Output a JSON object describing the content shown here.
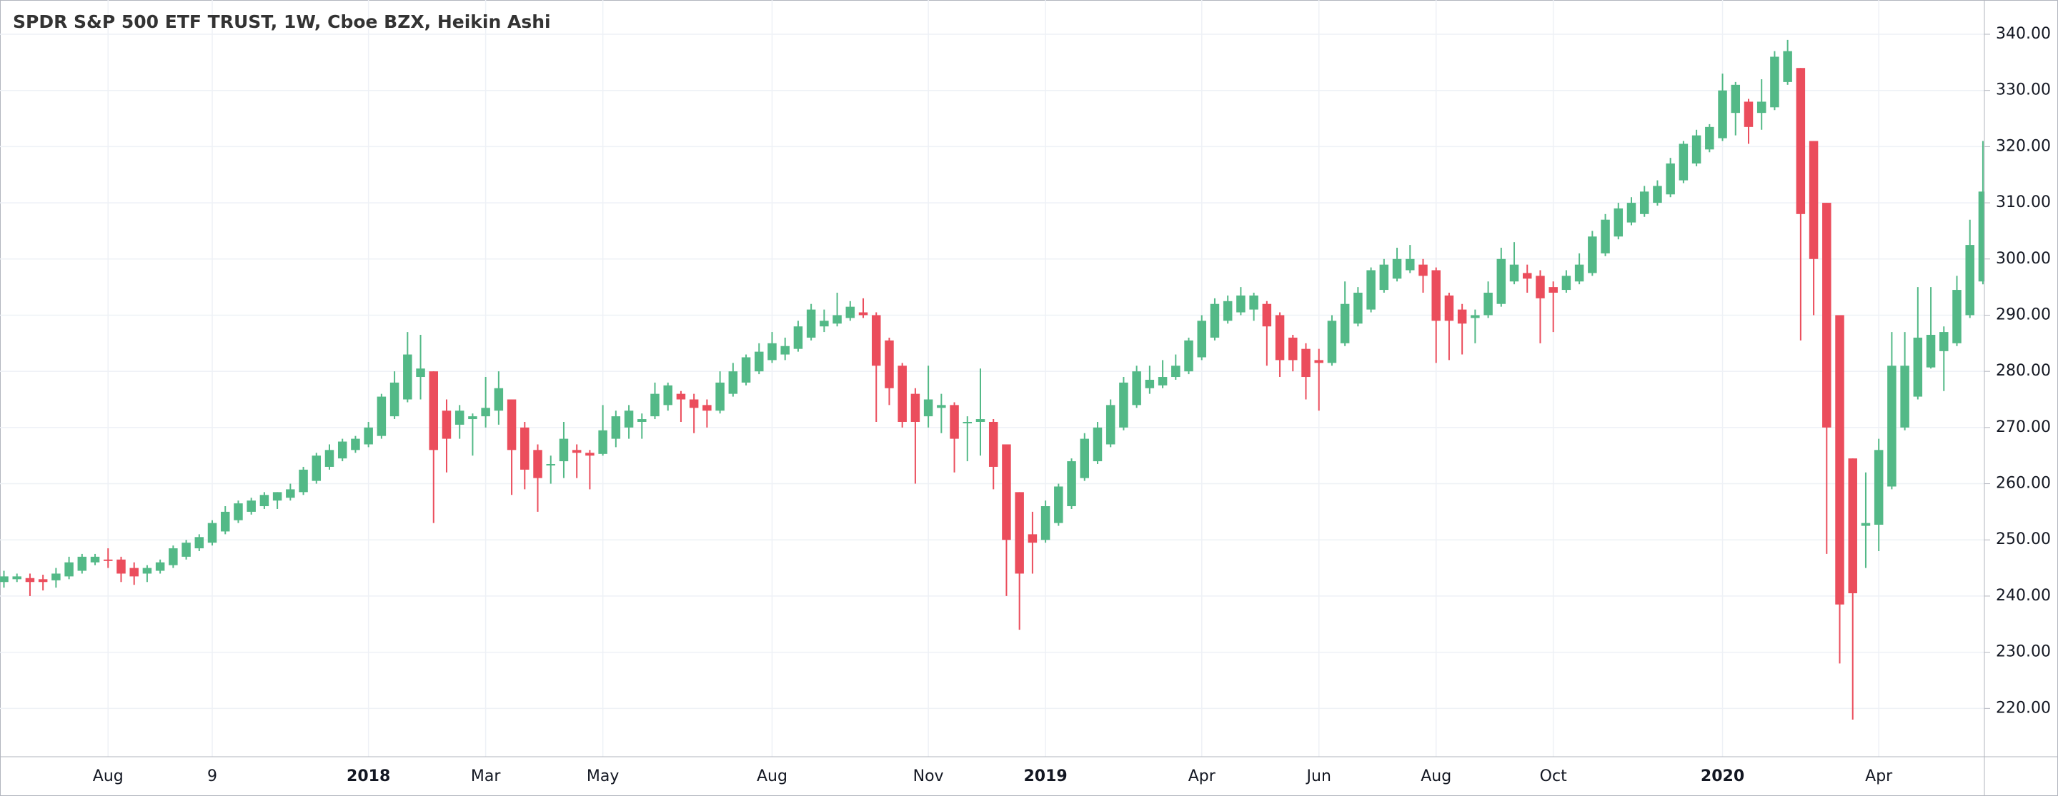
{
  "chart_data": {
    "type": "candlestick",
    "title": "SPDR S&P 500 ETF TRUST, 1W, Cboe BZX, Heikin Ashi",
    "categories": [
      null,
      null,
      null,
      null,
      null,
      null,
      null,
      null,
      "Aug",
      null,
      null,
      null,
      null,
      null,
      null,
      null,
      "9",
      null,
      null,
      null,
      null,
      null,
      null,
      null,
      null,
      null,
      null,
      null,
      "2018",
      null,
      null,
      null,
      null,
      null,
      null,
      null,
      null,
      "Mar",
      null,
      null,
      null,
      null,
      null,
      null,
      null,
      null,
      "May",
      null,
      null,
      null,
      null,
      null,
      null,
      null,
      null,
      null,
      null,
      null,
      null,
      "Aug",
      null,
      null,
      null,
      null,
      null,
      null,
      null,
      null,
      null,
      null,
      null,
      "Nov",
      null,
      null,
      null,
      null,
      null,
      null,
      null,
      null,
      "2019",
      null,
      null,
      null,
      null,
      null,
      null,
      null,
      null,
      null,
      null,
      null,
      "Apr",
      null,
      null,
      null,
      null,
      null,
      null,
      null,
      null,
      "Jun",
      null,
      null,
      null,
      null,
      null,
      null,
      null,
      null,
      "Aug",
      null,
      null,
      null,
      null,
      null,
      null,
      null,
      null,
      "Oct",
      null,
      null,
      null,
      null,
      null,
      null,
      null,
      null,
      null,
      null,
      null,
      null,
      "2020",
      null,
      null,
      null,
      null,
      null,
      null,
      null,
      null,
      null,
      null,
      null,
      "Apr",
      null,
      null,
      null,
      null,
      null,
      null,
      null,
      null
    ],
    "open": [
      242.5,
      243,
      243.2,
      243,
      242.8,
      243.5,
      244.5,
      246,
      246.5,
      246.5,
      245,
      244,
      244.5,
      245.5,
      247,
      248.5,
      249.5,
      251.5,
      253.5,
      255,
      256,
      257,
      257.5,
      258.5,
      260.5,
      263,
      264.5,
      266,
      267,
      268.5,
      272,
      275,
      279,
      280,
      273,
      270.5,
      271.5,
      272,
      273,
      275,
      270,
      266,
      263.5,
      264,
      266,
      265.5,
      265.3,
      268,
      270,
      271,
      272,
      274,
      276,
      275,
      274,
      273,
      276,
      278,
      280,
      282,
      283,
      284,
      286,
      288,
      288.5,
      289.5,
      290.5,
      290,
      285.5,
      281,
      276,
      272,
      273.5,
      274,
      271,
      271,
      271,
      267,
      258.5,
      251,
      250,
      253,
      256,
      261,
      264,
      267,
      270,
      274,
      277,
      277.5,
      279,
      280,
      282.5,
      286,
      289,
      290.5,
      291,
      292,
      290,
      286,
      284,
      282,
      281.5,
      285,
      288.5,
      291,
      294.5,
      296.5,
      298,
      299,
      298,
      293.5,
      291,
      289.5,
      290,
      292,
      296,
      297.5,
      297,
      295,
      294.5,
      296,
      297.5,
      301,
      304,
      306.5,
      308,
      310,
      311.5,
      314,
      317,
      319.5,
      321.5,
      326,
      328,
      326,
      327,
      331.5,
      334,
      321,
      310,
      290,
      264.5,
      252.5,
      252.7,
      259.5,
      270,
      275.5,
      280.7,
      283.6,
      285,
      290,
      296
    ],
    "high": [
      244.5,
      244,
      244,
      243.8,
      245,
      247,
      247.5,
      247.5,
      248.5,
      247,
      246,
      245.5,
      246.5,
      249,
      250,
      251,
      253.5,
      256,
      257,
      257.5,
      258.5,
      258.5,
      260,
      263,
      265.5,
      267,
      268,
      268.5,
      271,
      276,
      280,
      287,
      286.5,
      280,
      275,
      274,
      272.5,
      279,
      280,
      275,
      271,
      267,
      265,
      271,
      267,
      266,
      274,
      273,
      274,
      272.5,
      278,
      278,
      276.5,
      276,
      275,
      280,
      281.5,
      283,
      285,
      287,
      286,
      289,
      292,
      291,
      294,
      292.5,
      293,
      290.5,
      286,
      281.5,
      277,
      281,
      276,
      274.5,
      272,
      280.5,
      271.5,
      267,
      258.5,
      255,
      257,
      260,
      264.5,
      269,
      271,
      275,
      279,
      281,
      281,
      282,
      283,
      286,
      290,
      293,
      293.5,
      295,
      294,
      292.5,
      290.5,
      286.5,
      285,
      284,
      290,
      296,
      295,
      298.5,
      300,
      302,
      302.5,
      300,
      298.5,
      294,
      292,
      291,
      296,
      302,
      303,
      299,
      298,
      296,
      298,
      301,
      305,
      308,
      310,
      311,
      313,
      314,
      318,
      321,
      323,
      324,
      333,
      331.5,
      328.5,
      332,
      337,
      339,
      334,
      321,
      310,
      290,
      264.5,
      262,
      268,
      287,
      287,
      295,
      295,
      288,
      297,
      307,
      321
    ],
    "low": [
      241.5,
      242.5,
      240,
      241,
      241.5,
      243,
      244,
      245.5,
      245,
      242.5,
      242,
      242.5,
      244,
      245,
      246.5,
      248,
      249,
      251,
      253,
      254.5,
      255.5,
      255.5,
      257,
      258,
      260,
      262.5,
      264,
      265.5,
      266.5,
      268,
      271.5,
      274.5,
      275,
      253,
      262,
      268,
      265,
      270,
      270.5,
      258,
      259,
      255,
      260,
      261,
      261,
      259,
      265,
      266.5,
      268,
      268,
      271.5,
      273,
      271,
      269,
      270,
      272.5,
      275.5,
      277.5,
      279.5,
      281.5,
      282,
      283.5,
      285.5,
      287,
      288,
      289,
      289.5,
      271,
      274,
      270,
      260,
      270,
      269,
      262,
      264,
      265,
      259,
      240,
      234,
      244,
      249.5,
      252.5,
      255.5,
      260.5,
      263.5,
      266.5,
      269.5,
      273.5,
      276,
      277,
      278.5,
      279.5,
      282,
      285.5,
      288.5,
      290,
      289,
      281,
      279,
      280,
      275,
      273,
      281,
      284.5,
      288,
      290.5,
      294,
      296,
      297.5,
      294,
      281.5,
      282,
      283,
      285,
      289.5,
      291.5,
      295.5,
      294,
      285,
      287,
      294,
      295.5,
      297,
      300.5,
      303.5,
      306,
      307.5,
      309.5,
      311,
      313.5,
      316.5,
      319,
      321,
      322,
      320.5,
      323,
      326.5,
      331,
      285.5,
      290,
      247.5,
      228,
      218,
      245,
      248,
      259,
      269.5,
      275,
      280.5,
      276.5,
      284.5,
      289.5,
      295.5
    ],
    "close": [
      243.5,
      243.5,
      242.5,
      242.5,
      244,
      246,
      247,
      247,
      246.3,
      244,
      243.5,
      245,
      246,
      248.5,
      249.5,
      250.5,
      253,
      255,
      256.5,
      257,
      258,
      258.5,
      259,
      262.5,
      265,
      266,
      267.5,
      268,
      270,
      275.5,
      278,
      283,
      280.5,
      266,
      268,
      273,
      272,
      273.5,
      277,
      266,
      262.5,
      261,
      263.5,
      268,
      265.5,
      265,
      269.5,
      272,
      273,
      271.5,
      276,
      277.5,
      275,
      273.5,
      273,
      278,
      280,
      282.5,
      283.5,
      285,
      284.5,
      288,
      291,
      289,
      290,
      291.5,
      290,
      281,
      277,
      271,
      271,
      275,
      274,
      268,
      271,
      271.5,
      263,
      250,
      244,
      249.5,
      256,
      259.5,
      264,
      268,
      270,
      274,
      278,
      280,
      278.5,
      279,
      281,
      285.5,
      289,
      292,
      292.5,
      293.5,
      293.5,
      288,
      282,
      282,
      279,
      281.5,
      289,
      292,
      294,
      298,
      299,
      300,
      300,
      297,
      289,
      289,
      288.5,
      290,
      294,
      300,
      299,
      296.5,
      293,
      294,
      297,
      299,
      304,
      307,
      309,
      310,
      312,
      313,
      317,
      320.5,
      322,
      323.5,
      330,
      331,
      323.5,
      328,
      336,
      337,
      308,
      300,
      270,
      238.5,
      240.5,
      253,
      266,
      281,
      281,
      286,
      286.5,
      287,
      294.5,
      302.5,
      312
    ],
    "up_color": "#53b987",
    "down_color": "#eb4d5c",
    "ylim": [
      211.4,
      346.1
    ],
    "yticks": [
      {
        "value": 220,
        "label": "220.00"
      },
      {
        "value": 230,
        "label": "230.00"
      },
      {
        "value": 240,
        "label": "240.00"
      },
      {
        "value": 250,
        "label": "250.00"
      },
      {
        "value": 260,
        "label": "260.00"
      },
      {
        "value": 270,
        "label": "270.00"
      },
      {
        "value": 280,
        "label": "280.00"
      },
      {
        "value": 290,
        "label": "290.00"
      },
      {
        "value": 300,
        "label": "300.00"
      },
      {
        "value": 310,
        "label": "310.00"
      },
      {
        "value": 320,
        "label": "320.00"
      },
      {
        "value": 330,
        "label": "330.00"
      },
      {
        "value": 340,
        "label": "340.00"
      }
    ],
    "grid": true
  }
}
